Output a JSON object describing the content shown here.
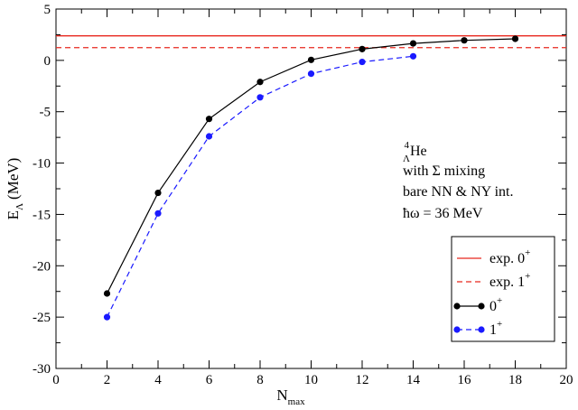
{
  "chart_data": {
    "type": "line",
    "title": "",
    "xlabel": {
      "main": "N",
      "sub": "max"
    },
    "ylabel": {
      "main": "E",
      "sub": "Λ",
      "unit": "(MeV)"
    },
    "xlim": [
      0,
      20
    ],
    "ylim": [
      -30,
      5
    ],
    "x_ticks": [
      0,
      2,
      4,
      6,
      8,
      10,
      12,
      14,
      16,
      18,
      20
    ],
    "y_ticks": [
      -30,
      -25,
      -20,
      -15,
      -10,
      -5,
      0,
      5
    ],
    "grid": false,
    "reference_lines": [
      {
        "name": "exp. 0+",
        "label": "exp. 0",
        "sup": "+",
        "y": 2.39,
        "color": "#e8281e",
        "style": "solid"
      },
      {
        "name": "exp. 1+",
        "label": "exp. 1",
        "sup": "+",
        "y": 1.24,
        "color": "#e8281e",
        "style": "dashed"
      }
    ],
    "series": [
      {
        "name": "0+",
        "label": "0",
        "sup": "+",
        "color": "#000000",
        "style": "solid",
        "x": [
          2,
          4,
          6,
          8,
          10,
          12,
          14,
          16,
          18
        ],
        "values": [
          -22.7,
          -12.9,
          -5.7,
          -2.1,
          0.05,
          1.1,
          1.65,
          1.95,
          2.1
        ]
      },
      {
        "name": "1+",
        "label": "1",
        "sup": "+",
        "color": "#1a1aff",
        "style": "dashed",
        "x": [
          2,
          4,
          6,
          8,
          10,
          12,
          14
        ],
        "values": [
          -25.0,
          -14.9,
          -7.4,
          -3.6,
          -1.3,
          -0.15,
          0.4
        ]
      }
    ],
    "annotations": {
      "nucleus": {
        "mass": "4",
        "hyperon": "Λ",
        "element": "He"
      },
      "line2": "with Σ mixing",
      "line3": "bare NN & NY int.",
      "line4": "ħω = 36 MeV"
    },
    "legend_position": "bottom-right"
  }
}
